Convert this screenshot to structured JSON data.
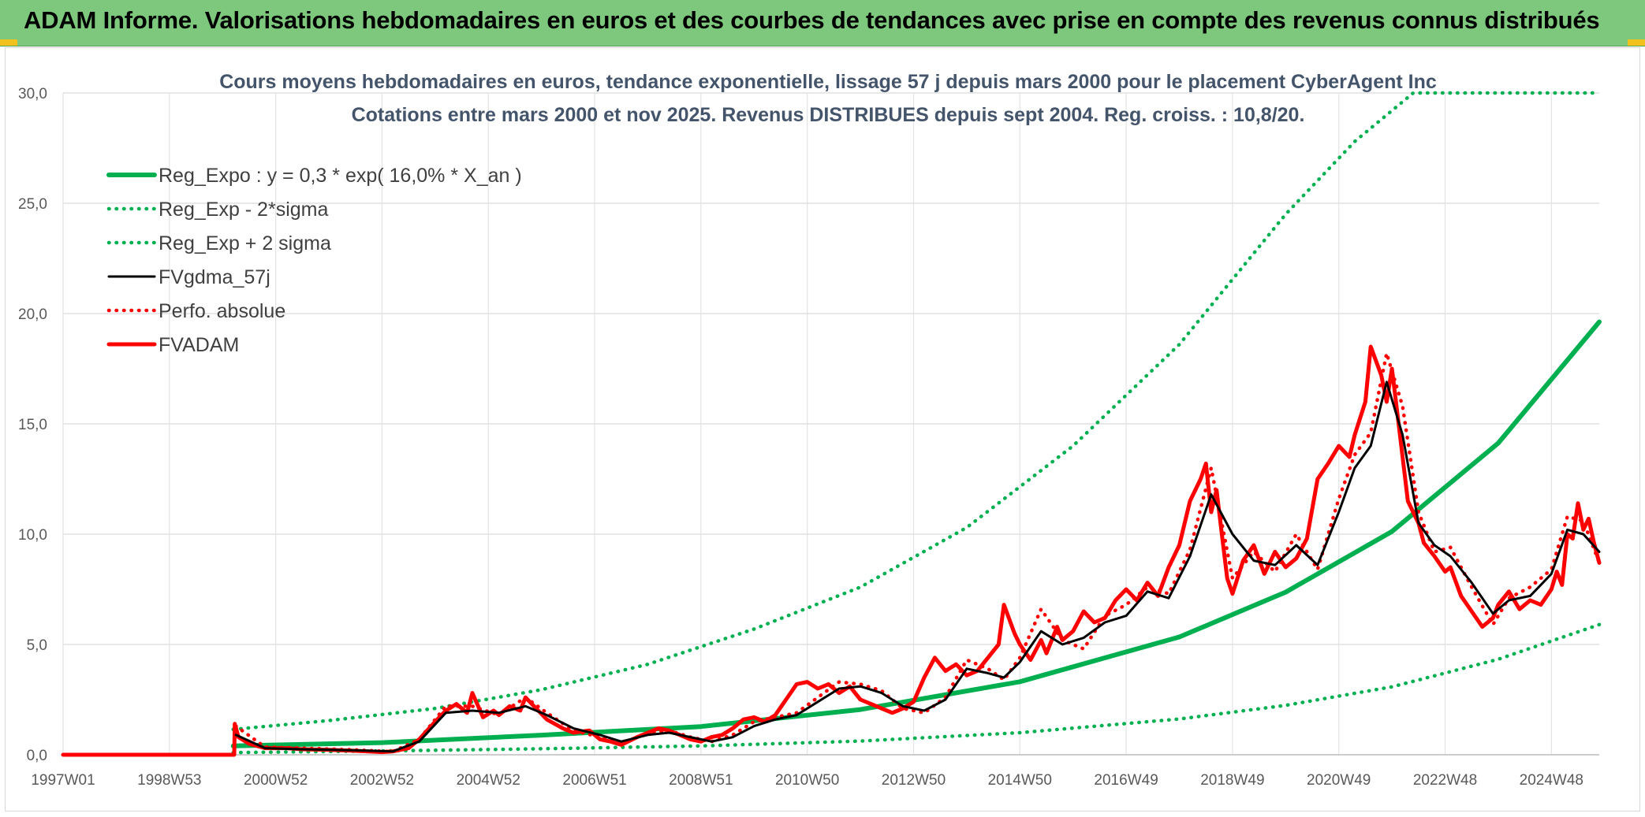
{
  "banner": {
    "title": "ADAM Informe. Valorisations hebdomadaires en euros et des courbes de tendances avec prise en compte des revenus connus distribués"
  },
  "colors": {
    "banner_bg": "#7dc87c",
    "green": "#00b050",
    "red": "#ff0000",
    "black": "#000000",
    "title_text": "#44546a"
  },
  "chart_data": {
    "type": "line",
    "title": "Cours moyens hebdomadaires en euros, tendance exponentielle, lissage 57 j depuis mars 2000 pour le placement CyberAgent Inc",
    "subtitle": "Cotations entre mars 2000 et nov 2025. Revenus DISTRIBUES depuis sept 2004. Reg. croiss. : 10,8/20.",
    "xlabel": "",
    "ylabel": "",
    "xlim": [
      1997.0,
      2025.9
    ],
    "ylim": [
      0,
      30
    ],
    "y_ticks": [
      "0,0",
      "5,0",
      "10,0",
      "15,0",
      "20,0",
      "25,0",
      "30,0"
    ],
    "x_ticks": [
      {
        "label": "1997W01",
        "x": 1997.0
      },
      {
        "label": "1998W53",
        "x": 1999.0
      },
      {
        "label": "2000W52",
        "x": 2001.0
      },
      {
        "label": "2002W52",
        "x": 2003.0
      },
      {
        "label": "2004W52",
        "x": 2005.0
      },
      {
        "label": "2006W51",
        "x": 2007.0
      },
      {
        "label": "2008W51",
        "x": 2009.0
      },
      {
        "label": "2010W50",
        "x": 2011.0
      },
      {
        "label": "2012W50",
        "x": 2013.0
      },
      {
        "label": "2014W50",
        "x": 2015.0
      },
      {
        "label": "2016W49",
        "x": 2017.0
      },
      {
        "label": "2018W49",
        "x": 2019.0
      },
      {
        "label": "2020W49",
        "x": 2021.0
      },
      {
        "label": "2022W48",
        "x": 2023.0
      },
      {
        "label": "2024W48",
        "x": 2025.0
      }
    ],
    "legend_position": "top-left",
    "series": [
      {
        "name": "Reg_Expo : y = 0,3 * exp( 16,0% *  X_an )",
        "style": "solid-thick",
        "color": "#00b050",
        "x": [
          2000.2,
          2003,
          2006,
          2009,
          2012,
          2015,
          2018,
          2020,
          2022,
          2024,
          2025.9
        ],
        "y": [
          0.4,
          0.55,
          0.89,
          1.28,
          2.05,
          3.31,
          5.34,
          7.37,
          10.12,
          14.13,
          19.62
        ]
      },
      {
        "name": "Reg_Exp - 2*sigma",
        "style": "dotted",
        "color": "#00b050",
        "x": [
          2000.2,
          2003,
          2006,
          2009,
          2012,
          2015,
          2018,
          2020,
          2022,
          2024,
          2025.9
        ],
        "y": [
          0.1,
          0.17,
          0.27,
          0.4,
          0.62,
          1.0,
          1.62,
          2.24,
          3.08,
          4.33,
          5.9
        ]
      },
      {
        "name": "Reg_Exp + 2 sigma",
        "style": "dotted",
        "color": "#00b050",
        "x": [
          2000.2,
          2002,
          2004,
          2006,
          2008,
          2010,
          2012,
          2014,
          2016,
          2018,
          2020,
          2021.3,
          2022.4,
          2025.9
        ],
        "y": [
          1.15,
          1.55,
          2.1,
          2.95,
          4.1,
          5.7,
          7.6,
          10.3,
          14.0,
          18.6,
          24.5,
          27.8,
          30.0,
          30.0
        ]
      },
      {
        "name": "FVgdma_57j",
        "style": "solid",
        "color": "#000000",
        "x": [
          2000.25,
          2000.8,
          2001.5,
          2002.5,
          2003.2,
          2003.7,
          2004.2,
          2004.7,
          2005.2,
          2005.7,
          2006.1,
          2006.6,
          2007.1,
          2007.5,
          2008.0,
          2008.4,
          2008.8,
          2009.2,
          2009.6,
          2010.0,
          2010.4,
          2010.8,
          2011.2,
          2011.6,
          2012.0,
          2012.4,
          2012.8,
          2013.2,
          2013.6,
          2014.0,
          2014.4,
          2014.7,
          2015.0,
          2015.4,
          2015.8,
          2016.2,
          2016.6,
          2017.0,
          2017.4,
          2017.8,
          2018.2,
          2018.6,
          2019.0,
          2019.4,
          2019.8,
          2020.2,
          2020.6,
          2021.0,
          2021.3,
          2021.6,
          2021.9,
          2022.2,
          2022.5,
          2022.8,
          2023.1,
          2023.5,
          2023.9,
          2024.2,
          2024.6,
          2025.0,
          2025.3,
          2025.6,
          2025.9
        ],
        "y": [
          0.9,
          0.3,
          0.25,
          0.2,
          0.15,
          0.6,
          1.9,
          2.0,
          1.9,
          2.2,
          1.8,
          1.2,
          0.9,
          0.6,
          0.9,
          1.0,
          0.8,
          0.6,
          0.8,
          1.3,
          1.6,
          1.8,
          2.4,
          3.0,
          3.1,
          2.8,
          2.2,
          2.0,
          2.5,
          3.9,
          3.7,
          3.5,
          4.2,
          5.6,
          5.0,
          5.3,
          6.0,
          6.3,
          7.4,
          7.1,
          9.0,
          11.8,
          10.0,
          8.8,
          8.6,
          9.5,
          8.6,
          11.0,
          13.0,
          14.0,
          16.9,
          14.5,
          10.5,
          9.5,
          9.0,
          7.8,
          6.4,
          7.0,
          7.2,
          8.2,
          10.2,
          10.0,
          9.2
        ]
      },
      {
        "name": "Perfo. absolue",
        "style": "dotted",
        "color": "#ff0000",
        "x": [
          2000.25,
          2000.8,
          2001.5,
          2002.5,
          2003.2,
          2003.7,
          2004.2,
          2004.7,
          2005.2,
          2005.7,
          2006.1,
          2006.6,
          2007.1,
          2007.5,
          2008.0,
          2008.4,
          2008.8,
          2009.2,
          2009.6,
          2010.0,
          2010.4,
          2010.8,
          2011.2,
          2011.6,
          2012.0,
          2012.4,
          2012.8,
          2013.2,
          2013.6,
          2014.0,
          2014.4,
          2014.7,
          2015.0,
          2015.4,
          2015.8,
          2016.2,
          2016.6,
          2017.0,
          2017.4,
          2017.8,
          2018.2,
          2018.6,
          2019.0,
          2019.4,
          2019.8,
          2020.2,
          2020.6,
          2021.0,
          2021.3,
          2021.6,
          2021.9,
          2022.2,
          2022.5,
          2022.8,
          2023.1,
          2023.5,
          2023.9,
          2024.2,
          2024.6,
          2025.0,
          2025.3,
          2025.6,
          2025.9
        ],
        "y": [
          1.3,
          0.35,
          0.3,
          0.22,
          0.14,
          0.7,
          2.2,
          2.2,
          1.8,
          2.6,
          1.9,
          1.1,
          0.8,
          0.5,
          1.0,
          1.1,
          0.8,
          0.6,
          0.9,
          1.5,
          1.7,
          1.9,
          2.6,
          3.3,
          3.2,
          2.9,
          2.1,
          1.9,
          2.6,
          4.3,
          3.9,
          3.4,
          4.4,
          6.6,
          5.2,
          4.8,
          6.3,
          6.8,
          7.6,
          7.3,
          9.3,
          13.0,
          8.0,
          9.2,
          8.3,
          10.0,
          8.4,
          11.6,
          13.6,
          14.6,
          18.2,
          15.8,
          11.0,
          9.2,
          9.4,
          7.6,
          5.9,
          7.1,
          7.6,
          8.4,
          10.8,
          10.6,
          8.7
        ]
      },
      {
        "name": "FVADAM",
        "style": "solid-thick",
        "color": "#ff0000",
        "x": [
          1997.0,
          2000.22,
          2000.23,
          2000.3,
          2000.5,
          2000.8,
          2001.2,
          2001.5,
          2002.0,
          2002.5,
          2003.0,
          2003.2,
          2003.5,
          2003.7,
          2004.0,
          2004.2,
          2004.4,
          2004.6,
          2004.7,
          2004.9,
          2005.1,
          2005.2,
          2005.4,
          2005.6,
          2005.7,
          2005.9,
          2006.1,
          2006.4,
          2006.6,
          2006.9,
          2007.1,
          2007.3,
          2007.5,
          2007.8,
          2008.0,
          2008.2,
          2008.4,
          2008.6,
          2008.8,
          2009.0,
          2009.2,
          2009.4,
          2009.6,
          2009.8,
          2010.0,
          2010.2,
          2010.4,
          2010.6,
          2010.8,
          2011.0,
          2011.2,
          2011.4,
          2011.6,
          2011.8,
          2012.0,
          2012.2,
          2012.4,
          2012.6,
          2012.8,
          2013.0,
          2013.2,
          2013.4,
          2013.6,
          2013.8,
          2014.0,
          2014.2,
          2014.4,
          2014.6,
          2014.7,
          2014.9,
          2015.0,
          2015.2,
          2015.4,
          2015.5,
          2015.7,
          2015.8,
          2016.0,
          2016.2,
          2016.4,
          2016.6,
          2016.8,
          2017.0,
          2017.2,
          2017.4,
          2017.6,
          2017.8,
          2018.0,
          2018.2,
          2018.4,
          2018.5,
          2018.6,
          2018.7,
          2018.8,
          2018.9,
          2019.0,
          2019.2,
          2019.4,
          2019.6,
          2019.8,
          2020.0,
          2020.2,
          2020.4,
          2020.6,
          2020.8,
          2021.0,
          2021.2,
          2021.3,
          2021.5,
          2021.6,
          2021.8,
          2021.9,
          2022.0,
          2022.1,
          2022.2,
          2022.3,
          2022.5,
          2022.6,
          2022.8,
          2023.0,
          2023.1,
          2023.3,
          2023.5,
          2023.7,
          2023.9,
          2024.0,
          2024.2,
          2024.4,
          2024.6,
          2024.8,
          2025.0,
          2025.1,
          2025.2,
          2025.3,
          2025.4,
          2025.5,
          2025.6,
          2025.7,
          2025.8,
          2025.9
        ],
        "y": [
          0.0,
          0.0,
          1.4,
          0.8,
          0.5,
          0.3,
          0.3,
          0.25,
          0.22,
          0.18,
          0.12,
          0.15,
          0.3,
          0.7,
          1.5,
          2.0,
          2.3,
          1.9,
          2.8,
          1.7,
          2.0,
          1.8,
          2.2,
          2.0,
          2.6,
          2.1,
          1.6,
          1.2,
          1.0,
          1.1,
          0.7,
          0.6,
          0.45,
          0.8,
          1.0,
          1.2,
          1.1,
          0.9,
          0.7,
          0.6,
          0.8,
          0.9,
          1.2,
          1.6,
          1.7,
          1.5,
          1.8,
          2.5,
          3.2,
          3.3,
          3.0,
          3.2,
          2.8,
          3.1,
          2.5,
          2.3,
          2.1,
          1.9,
          2.1,
          2.4,
          3.5,
          4.4,
          3.8,
          4.1,
          3.6,
          3.8,
          4.4,
          5.0,
          6.8,
          5.5,
          5.0,
          4.3,
          5.2,
          4.6,
          5.8,
          5.2,
          5.6,
          6.5,
          6.0,
          6.2,
          7.0,
          7.5,
          7.0,
          7.8,
          7.2,
          8.5,
          9.5,
          11.5,
          12.5,
          13.2,
          11.0,
          12.0,
          10.0,
          8.0,
          7.3,
          8.8,
          9.5,
          8.2,
          9.2,
          8.5,
          8.9,
          9.8,
          12.5,
          13.2,
          14.0,
          13.5,
          14.5,
          16.0,
          18.5,
          17.2,
          16.0,
          17.5,
          15.5,
          13.5,
          11.5,
          10.5,
          9.6,
          9.0,
          8.3,
          8.5,
          7.2,
          6.5,
          5.8,
          6.2,
          6.8,
          7.4,
          6.6,
          7.0,
          6.8,
          7.5,
          8.3,
          7.7,
          10.0,
          9.8,
          11.4,
          10.2,
          10.7,
          9.6,
          8.7
        ]
      }
    ]
  }
}
